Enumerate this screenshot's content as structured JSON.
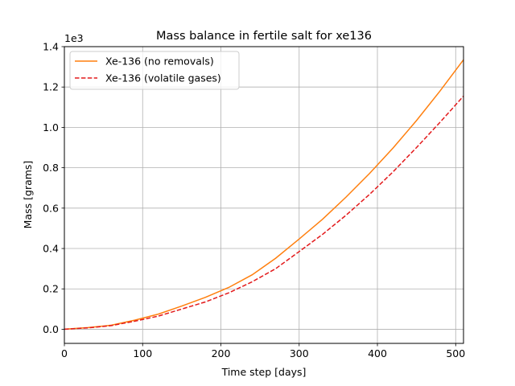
{
  "chart_data": {
    "type": "line",
    "title": "Mass balance in fertile salt for xe136",
    "xlabel": "Time step [days]",
    "ylabel": "Mass [grams]",
    "y_offset_label": "1e3",
    "xlim": [
      0,
      510
    ],
    "ylim": [
      -0.07,
      1.4
    ],
    "x_ticks": [
      0,
      100,
      200,
      300,
      400,
      500
    ],
    "x_tick_labels": [
      "0",
      "100",
      "200",
      "300",
      "400",
      "500"
    ],
    "y_ticks": [
      0.0,
      0.2,
      0.4,
      0.6,
      0.8,
      1.0,
      1.2,
      1.4
    ],
    "y_tick_labels": [
      "0.0",
      "0.2",
      "0.4",
      "0.6",
      "0.8",
      "1.0",
      "1.2",
      "1.4"
    ],
    "grid": true,
    "legend_position": "top-left",
    "x": [
      0,
      30,
      60,
      90,
      120,
      150,
      180,
      210,
      240,
      270,
      300,
      330,
      360,
      390,
      420,
      450,
      480,
      510
    ],
    "series": [
      {
        "name": "Xe-136 (no removals)",
        "color": "#ff7f0e",
        "style": "solid",
        "values": [
          0.0,
          0.008,
          0.02,
          0.045,
          0.075,
          0.115,
          0.158,
          0.207,
          0.27,
          0.352,
          0.447,
          0.545,
          0.655,
          0.772,
          0.898,
          1.034,
          1.18,
          1.335
        ]
      },
      {
        "name": "Xe-136 (volatile gases)",
        "color": "#e31a1c",
        "style": "dashed",
        "values": [
          0.0,
          0.007,
          0.018,
          0.04,
          0.065,
          0.1,
          0.135,
          0.18,
          0.235,
          0.3,
          0.385,
          0.47,
          0.565,
          0.668,
          0.78,
          0.9,
          1.025,
          1.155
        ]
      }
    ]
  }
}
